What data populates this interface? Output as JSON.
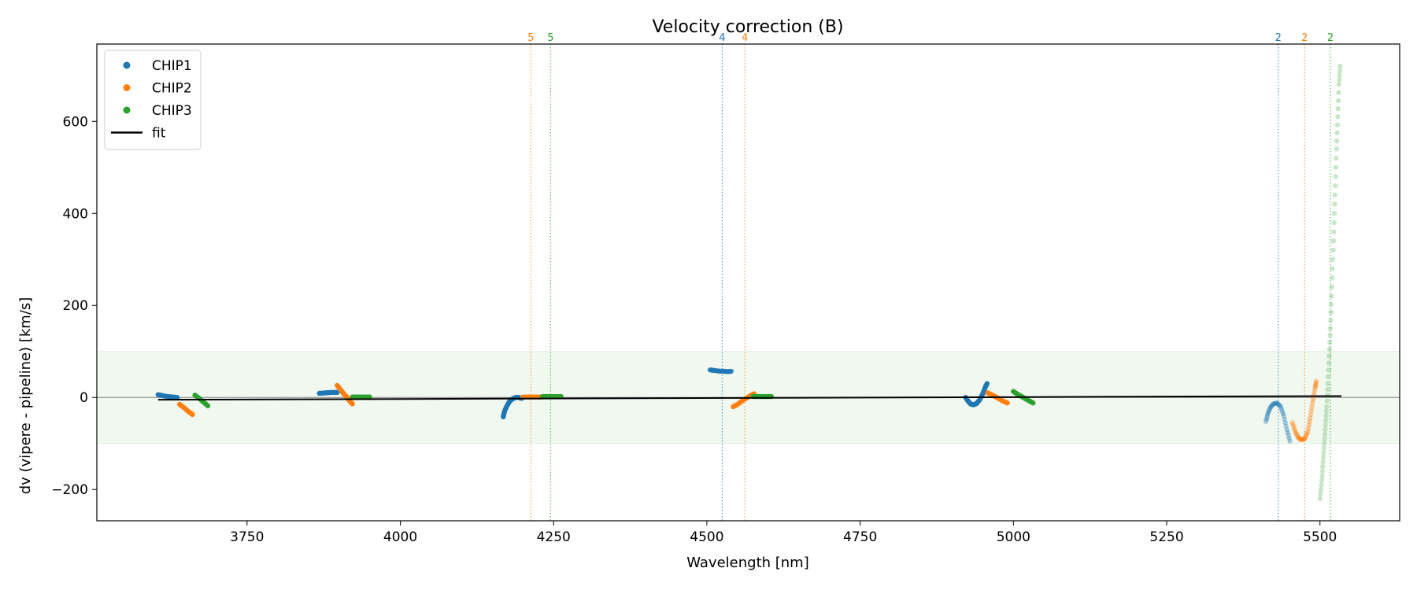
{
  "chart_data": {
    "type": "scatter",
    "title": "Velocity correction (B)",
    "xlabel": "Wavelength [nm]",
    "ylabel": "dv (vipere - pipeline) [km/s]",
    "xlim": [
      3505,
      5630
    ],
    "ylim": [
      -268,
      768
    ],
    "x_ticks": [
      3750,
      4000,
      4250,
      4500,
      4750,
      5000,
      5250,
      5500
    ],
    "y_ticks": [
      -200,
      0,
      200,
      400,
      600
    ],
    "x_tick_labels": [
      "3750",
      "4000",
      "4250",
      "4500",
      "4750",
      "5000",
      "5250",
      "5500"
    ],
    "y_tick_labels": [
      "−200",
      "0",
      "200",
      "400",
      "600"
    ],
    "band": [
      -100,
      100
    ],
    "zero_line": 0,
    "colors": {
      "CHIP1": "#1f77b4",
      "CHIP2": "#ff7f0e",
      "CHIP3": "#2ca02c",
      "fit": "#000000",
      "band": "#2ca02c"
    },
    "legend": {
      "position": "top-left",
      "entries": [
        {
          "label": "CHIP1",
          "marker": "dot",
          "color": "#1f77b4"
        },
        {
          "label": "CHIP2",
          "marker": "dot",
          "color": "#ff7f0e"
        },
        {
          "label": "CHIP3",
          "marker": "dot",
          "color": "#2ca02c"
        },
        {
          "label": "fit",
          "marker": "line",
          "color": "#000000"
        }
      ]
    },
    "fit": {
      "x": [
        3605,
        5535
      ],
      "y": [
        -5,
        3
      ]
    },
    "flagged_orders": [
      {
        "label": "5",
        "x": 4213,
        "chip": "CHIP2",
        "color": "#ff7f0e"
      },
      {
        "label": "5",
        "x": 4245,
        "chip": "CHIP3",
        "color": "#2ca02c"
      },
      {
        "label": "4",
        "x": 4525,
        "chip": "CHIP1",
        "color": "#1f77b4"
      },
      {
        "label": "4",
        "x": 4562,
        "chip": "CHIP2",
        "color": "#ff7f0e"
      },
      {
        "label": "2",
        "x": 5432,
        "chip": "CHIP1",
        "color": "#1f77b4"
      },
      {
        "label": "2",
        "x": 5475,
        "chip": "CHIP2",
        "color": "#ff7f0e"
      },
      {
        "label": "2",
        "x": 5517,
        "chip": "CHIP3",
        "color": "#2ca02c"
      }
    ],
    "series": [
      {
        "name": "CHIP1",
        "color": "#1f77b4",
        "alpha": 1,
        "points": [
          [
            3605,
            6
          ],
          [
            3612,
            4
          ],
          [
            3620,
            2
          ],
          [
            3628,
            1
          ],
          [
            3636,
            0
          ]
        ]
      },
      {
        "name": "CHIP2",
        "color": "#ff7f0e",
        "alpha": 1,
        "points": [
          [
            3640,
            -15
          ],
          [
            3647,
            -22
          ],
          [
            3654,
            -30
          ],
          [
            3661,
            -37
          ]
        ]
      },
      {
        "name": "CHIP3",
        "color": "#2ca02c",
        "alpha": 1,
        "points": [
          [
            3665,
            5
          ],
          [
            3672,
            -2
          ],
          [
            3679,
            -10
          ],
          [
            3686,
            -18
          ]
        ]
      },
      {
        "name": "CHIP1",
        "color": "#1f77b4",
        "alpha": 1,
        "points": [
          [
            3868,
            9
          ],
          [
            3878,
            10
          ],
          [
            3888,
            11
          ],
          [
            3897,
            11
          ]
        ]
      },
      {
        "name": "CHIP2",
        "color": "#ff7f0e",
        "alpha": 1,
        "points": [
          [
            3897,
            26
          ],
          [
            3902,
            18
          ],
          [
            3907,
            9
          ],
          [
            3912,
            2
          ],
          [
            3917,
            -7
          ],
          [
            3922,
            -14
          ]
        ]
      },
      {
        "name": "CHIP3",
        "color": "#2ca02c",
        "alpha": 1,
        "points": [
          [
            3922,
            1
          ],
          [
            3932,
            1
          ],
          [
            3942,
            1
          ],
          [
            3950,
            1
          ]
        ]
      },
      {
        "name": "CHIP1",
        "color": "#1f77b4",
        "alpha": 1,
        "points": [
          [
            4168,
            -42
          ],
          [
            4170,
            -30
          ],
          [
            4174,
            -18
          ],
          [
            4178,
            -9
          ],
          [
            4183,
            -3
          ],
          [
            4188,
            0
          ],
          [
            4193,
            0
          ],
          [
            4198,
            -2
          ]
        ]
      },
      {
        "name": "CHIP2",
        "color": "#ff7f0e",
        "alpha": 1,
        "points": [
          [
            4200,
            1
          ],
          [
            4210,
            1
          ],
          [
            4220,
            1
          ],
          [
            4230,
            1
          ]
        ]
      },
      {
        "name": "CHIP3",
        "color": "#2ca02c",
        "alpha": 1,
        "points": [
          [
            4232,
            2
          ],
          [
            4242,
            2
          ],
          [
            4252,
            2
          ],
          [
            4262,
            2
          ]
        ]
      },
      {
        "name": "CHIP1",
        "color": "#1f77b4",
        "alpha": 0.65,
        "points": [
          [
            4505,
            60
          ],
          [
            4510,
            59
          ],
          [
            4516,
            58
          ],
          [
            4522,
            57
          ],
          [
            4528,
            57
          ],
          [
            4534,
            56
          ],
          [
            4540,
            57
          ]
        ]
      },
      {
        "name": "CHIP2",
        "color": "#ff7f0e",
        "alpha": 1,
        "points": [
          [
            4543,
            -20
          ],
          [
            4550,
            -15
          ],
          [
            4557,
            -8
          ],
          [
            4564,
            -2
          ],
          [
            4571,
            4
          ],
          [
            4577,
            8
          ]
        ]
      },
      {
        "name": "CHIP3",
        "color": "#2ca02c",
        "alpha": 1,
        "points": [
          [
            4575,
            2
          ],
          [
            4585,
            2
          ],
          [
            4595,
            2
          ],
          [
            4605,
            2
          ]
        ]
      },
      {
        "name": "CHIP1",
        "color": "#1f77b4",
        "alpha": 1,
        "points": [
          [
            4922,
            0
          ],
          [
            4926,
            -8
          ],
          [
            4930,
            -14
          ],
          [
            4935,
            -16
          ],
          [
            4940,
            -13
          ],
          [
            4945,
            -5
          ],
          [
            4950,
            8
          ],
          [
            4954,
            22
          ],
          [
            4957,
            30
          ]
        ]
      },
      {
        "name": "CHIP2",
        "color": "#ff7f0e",
        "alpha": 1,
        "points": [
          [
            4958,
            10
          ],
          [
            4966,
            5
          ],
          [
            4974,
            -1
          ],
          [
            4982,
            -7
          ],
          [
            4990,
            -12
          ]
        ]
      },
      {
        "name": "CHIP3",
        "color": "#2ca02c",
        "alpha": 1,
        "points": [
          [
            5000,
            13
          ],
          [
            5008,
            6
          ],
          [
            5016,
            0
          ],
          [
            5024,
            -6
          ],
          [
            5032,
            -12
          ]
        ]
      },
      {
        "name": "CHIP1",
        "color": "#1f77b4",
        "alpha": 0.35,
        "points": [
          [
            5412,
            -52
          ],
          [
            5415,
            -35
          ],
          [
            5419,
            -22
          ],
          [
            5424,
            -14
          ],
          [
            5430,
            -12
          ],
          [
            5436,
            -20
          ],
          [
            5441,
            -40
          ],
          [
            5446,
            -70
          ],
          [
            5451,
            -95
          ]
        ]
      },
      {
        "name": "CHIP2",
        "color": "#ff7f0e",
        "alpha": 0.4,
        "points": [
          [
            5455,
            -55
          ],
          [
            5460,
            -75
          ],
          [
            5465,
            -88
          ],
          [
            5470,
            -92
          ],
          [
            5475,
            -90
          ],
          [
            5480,
            -75
          ],
          [
            5484,
            -45
          ],
          [
            5488,
            -10
          ],
          [
            5492,
            20
          ],
          [
            5494,
            35
          ]
        ]
      },
      {
        "name": "CHIP3",
        "color": "#2ca02c",
        "alpha": 0.25,
        "points": [
          [
            5500,
            -220
          ],
          [
            5503,
            -180
          ],
          [
            5505,
            -140
          ],
          [
            5507,
            -100
          ],
          [
            5509,
            -60
          ],
          [
            5511,
            -20
          ],
          [
            5513,
            30
          ],
          [
            5515,
            90
          ],
          [
            5517,
            150
          ],
          [
            5519,
            220
          ],
          [
            5521,
            300
          ],
          [
            5523,
            380
          ],
          [
            5525,
            460
          ],
          [
            5527,
            540
          ],
          [
            5529,
            610
          ],
          [
            5531,
            680
          ],
          [
            5533,
            720
          ]
        ]
      }
    ]
  }
}
